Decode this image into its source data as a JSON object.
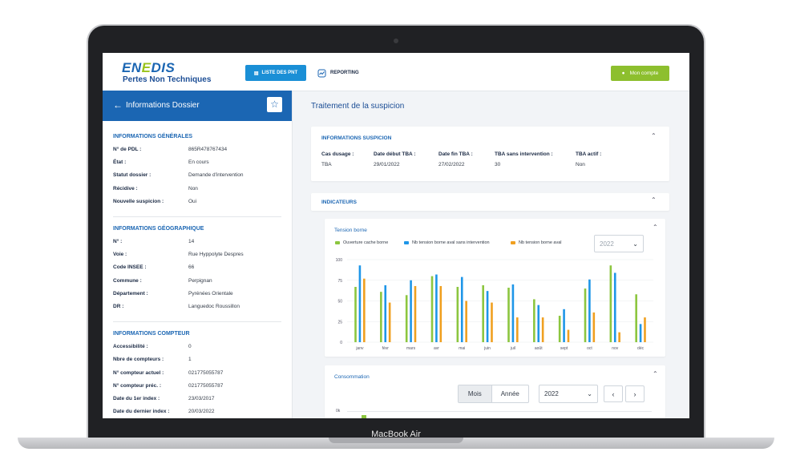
{
  "laptop": {
    "brand": "MacBook Air"
  },
  "header": {
    "logo_prefix": "EN",
    "logo_mid": "E",
    "logo_suffix": "DIS",
    "subtitle": "Pertes Non Techniques",
    "nav_list_label": "LISTE DES PNT",
    "nav_report_label": "REPORTING",
    "account_label": "Mon compte"
  },
  "sidebar": {
    "title": "Informations Dossier",
    "sections": [
      {
        "title": "INFORMATIONS GÉNÉRALES",
        "rows": [
          {
            "k": "N° de PDL :",
            "v": "865R478767434"
          },
          {
            "k": "État :",
            "v": "En cours"
          },
          {
            "k": "Statut dossier :",
            "v": "Demande d'intervention"
          },
          {
            "k": "Récidive :",
            "v": "Non"
          },
          {
            "k": "Nouvelle suspicion :",
            "v": "Oui"
          }
        ]
      },
      {
        "title": "INFORMATIONS GÉOGRAPHIQUE",
        "rows": [
          {
            "k": "N° :",
            "v": "14"
          },
          {
            "k": "Voie :",
            "v": "Rue Hyppolyte Despres"
          },
          {
            "k": "Code INSEE :",
            "v": "66"
          },
          {
            "k": "Commune :",
            "v": "Perpignan"
          },
          {
            "k": "Département :",
            "v": "Pyrénées Orientale"
          },
          {
            "k": "DR :",
            "v": "Languedoc Roussillon"
          }
        ]
      },
      {
        "title": "INFORMATIONS COMPTEUR",
        "rows": [
          {
            "k": "Accessibilité :",
            "v": "0"
          },
          {
            "k": "Nbre de compteurs :",
            "v": "1"
          },
          {
            "k": "N° compteur actuel :",
            "v": "021775055787"
          },
          {
            "k": "N° compteur préc. :",
            "v": "021775055787"
          },
          {
            "k": "Date du 1er index :",
            "v": "23/03/2017"
          },
          {
            "k": "Date du dernier index :",
            "v": "20/03/2022"
          }
        ]
      }
    ]
  },
  "main": {
    "title": "Traitement de la suspicion",
    "suspicion": {
      "title": "INFORMATIONS SUSPICION",
      "cols": [
        {
          "h": "Cas dusage :",
          "v": "TBA"
        },
        {
          "h": "Date début TBA :",
          "v": "29/01/2022"
        },
        {
          "h": "Date fin TBA :",
          "v": "27/02/2022"
        },
        {
          "h": "TBA sans intervention :",
          "v": "30"
        },
        {
          "h": "TBA actif :",
          "v": "Non"
        }
      ]
    },
    "indicators_title": "INDICATEURS",
    "consommation": {
      "title": "Consommation",
      "seg_mois": "Mois",
      "seg_annee": "Année",
      "year": "2022",
      "prev": "‹",
      "next": "›",
      "y_first_tick": "0k"
    }
  },
  "colors": {
    "green": "#8cc63f",
    "blue": "#1e96e8",
    "orange": "#f0a020",
    "primary": "#1b66b3"
  },
  "chart_data": {
    "type": "bar",
    "title": "Tension borne",
    "year_select": "2022",
    "categories": [
      "janv",
      "févr",
      "mars",
      "avr",
      "mai",
      "juin",
      "juil",
      "août",
      "sept",
      "oct",
      "nov",
      "déc"
    ],
    "yticks": [
      "0",
      "25",
      "50",
      "75",
      "100"
    ],
    "ylim": [
      0,
      100
    ],
    "legend_position": "top-left",
    "series": [
      {
        "name": "Ouverture cache borne",
        "color": "#8cc63f",
        "values": [
          67,
          61,
          57,
          80,
          67,
          69,
          66,
          52,
          32,
          65,
          93,
          58
        ]
      },
      {
        "name": "Nb tension borne aval sans intervention",
        "color": "#1e96e8",
        "values": [
          93,
          69,
          75,
          82,
          79,
          62,
          70,
          45,
          40,
          76,
          84,
          22
        ]
      },
      {
        "name": "Nb tension borne aval",
        "color": "#f0a020",
        "values": [
          77,
          48,
          68,
          68,
          50,
          48,
          30,
          30,
          15,
          36,
          12,
          30
        ]
      }
    ]
  }
}
